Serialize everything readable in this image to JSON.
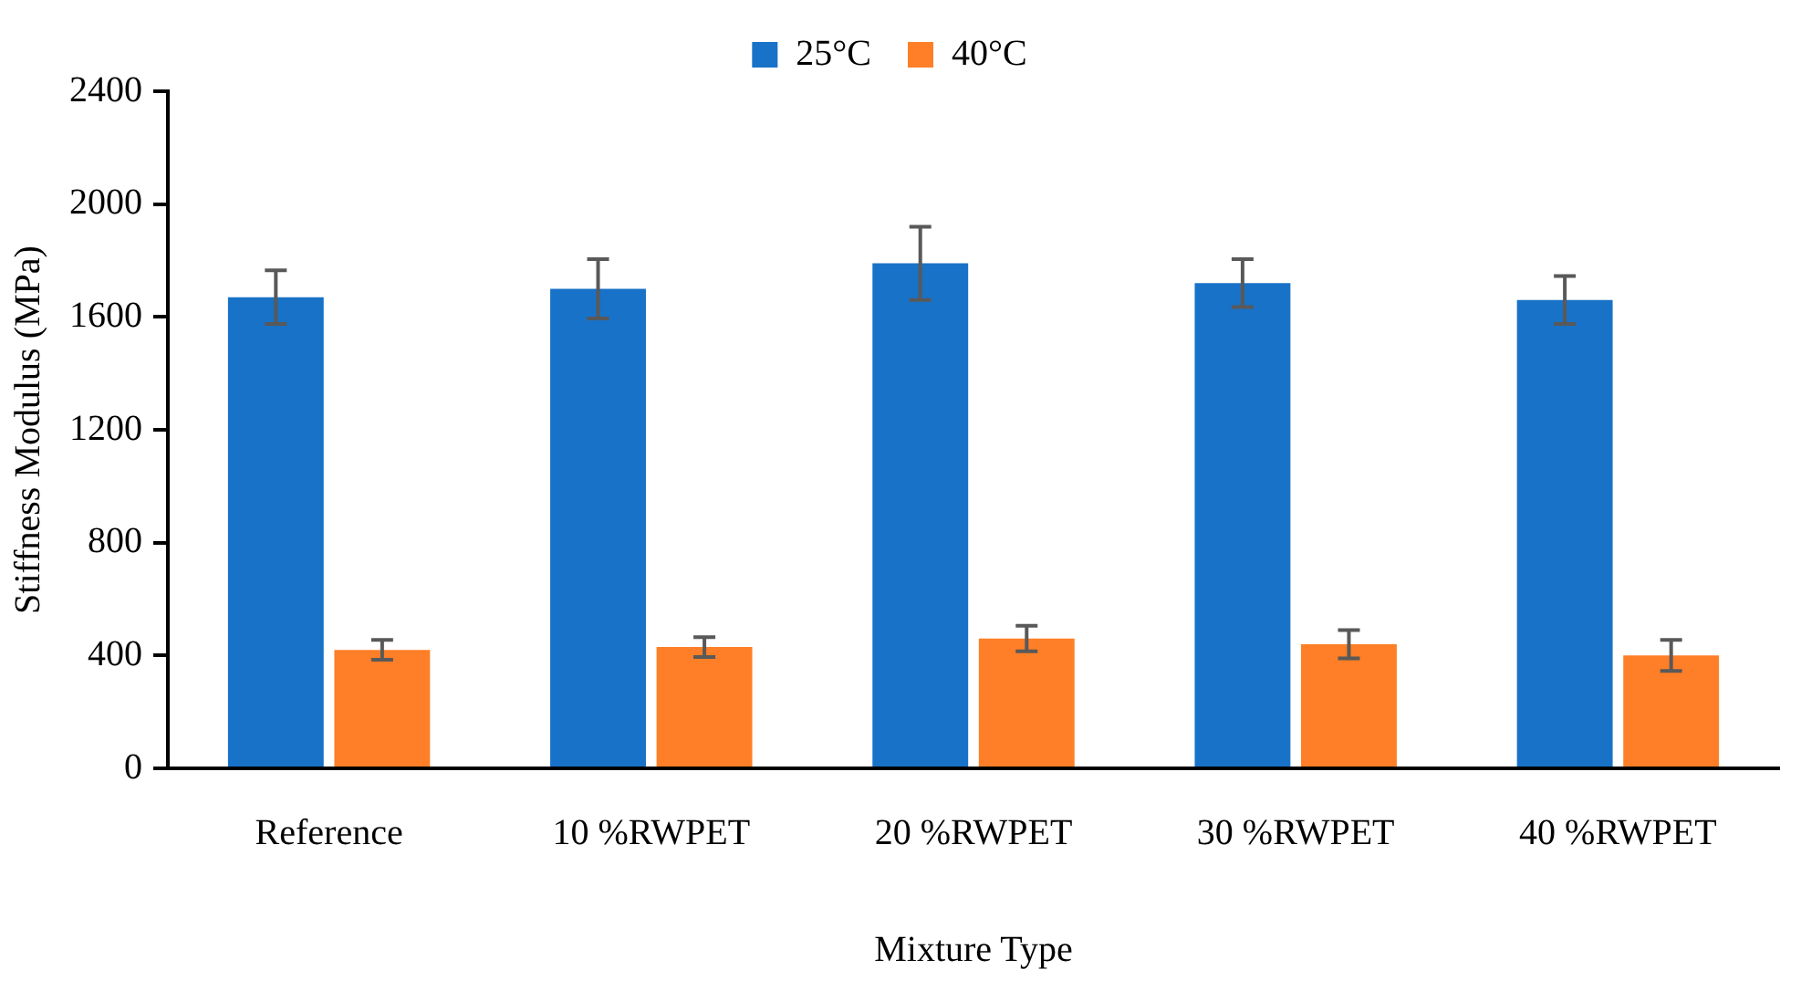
{
  "chart_data": {
    "type": "bar",
    "xlabel": "Mixture Type",
    "ylabel": "Stiffness Modulus (MPa)",
    "categories": [
      "Reference",
      "10 %RWPET",
      "20 %RWPET",
      "30 %RWPET",
      "40 %RWPET"
    ],
    "series": [
      {
        "name": "25°C",
        "color": "#1872c8",
        "values": [
          1670,
          1700,
          1790,
          1720,
          1660
        ],
        "errors": [
          95,
          105,
          130,
          85,
          85
        ]
      },
      {
        "name": "40°C",
        "color": "#fe7f27",
        "values": [
          420,
          430,
          460,
          440,
          400
        ],
        "errors": [
          35,
          35,
          45,
          50,
          55
        ]
      }
    ],
    "ylim": [
      0,
      2400
    ],
    "yticks": [
      0,
      400,
      800,
      1200,
      1600,
      2000,
      2400
    ],
    "grid": false,
    "legend": "top"
  }
}
